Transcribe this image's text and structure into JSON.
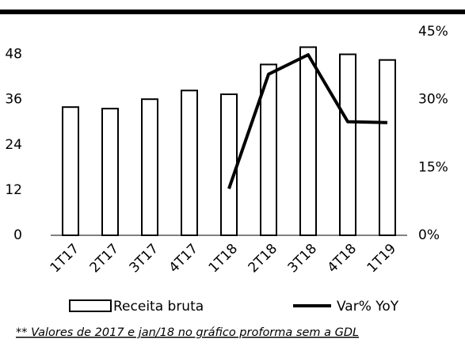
{
  "chart_data": {
    "type": "bar_line",
    "categories": [
      "1T17",
      "2T17",
      "3T17",
      "4T17",
      "1T18",
      "2T18",
      "3T18",
      "4T18",
      "1T19"
    ],
    "series": [
      {
        "name": "Receita bruta",
        "type": "bar",
        "color": "#ffffff",
        "values": [
          34.0,
          33.6,
          36.1,
          38.4,
          37.4,
          45.3,
          49.9,
          48.0,
          46.5
        ]
      },
      {
        "name": "Var% YoY",
        "type": "line",
        "axis": "y2",
        "color": "#000000",
        "values": [
          null,
          null,
          null,
          null,
          10.3,
          35.6,
          39.9,
          25.1,
          24.9
        ]
      }
    ],
    "ylim": [
      0,
      54
    ],
    "yticks": [
      0,
      12,
      24,
      36,
      48
    ],
    "y2lim": [
      0,
      45
    ],
    "y2ticks": [
      {
        "value": 0,
        "label": "0%"
      },
      {
        "value": 15,
        "label": "15%"
      },
      {
        "value": 30,
        "label": "30%"
      },
      {
        "value": 45,
        "label": "45%"
      }
    ],
    "grid": false,
    "legend": "bottom",
    "footnote": "** Valores de 2017 e jan/18 no gráfico proforma sem a GDL"
  }
}
